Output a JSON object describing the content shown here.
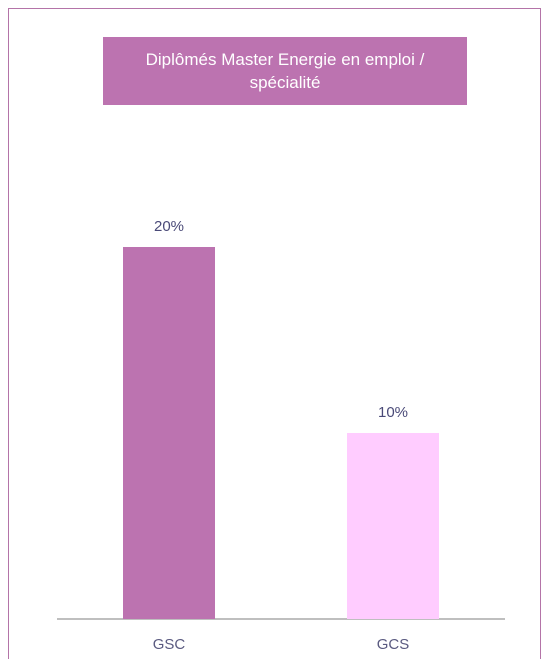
{
  "chart_data": {
    "type": "bar",
    "title": "Diplômés Master Energie en emploi / spécialité",
    "categories": [
      "GSC",
      "GCS"
    ],
    "values": [
      20,
      10
    ],
    "data_labels": [
      "20%",
      "10%"
    ],
    "unit": "%",
    "ylim": [
      0,
      20
    ],
    "grid": false,
    "legend": "none",
    "colors": [
      "#bc73b0",
      "#ffccff"
    ],
    "axis_color": "#7f7f7f"
  }
}
